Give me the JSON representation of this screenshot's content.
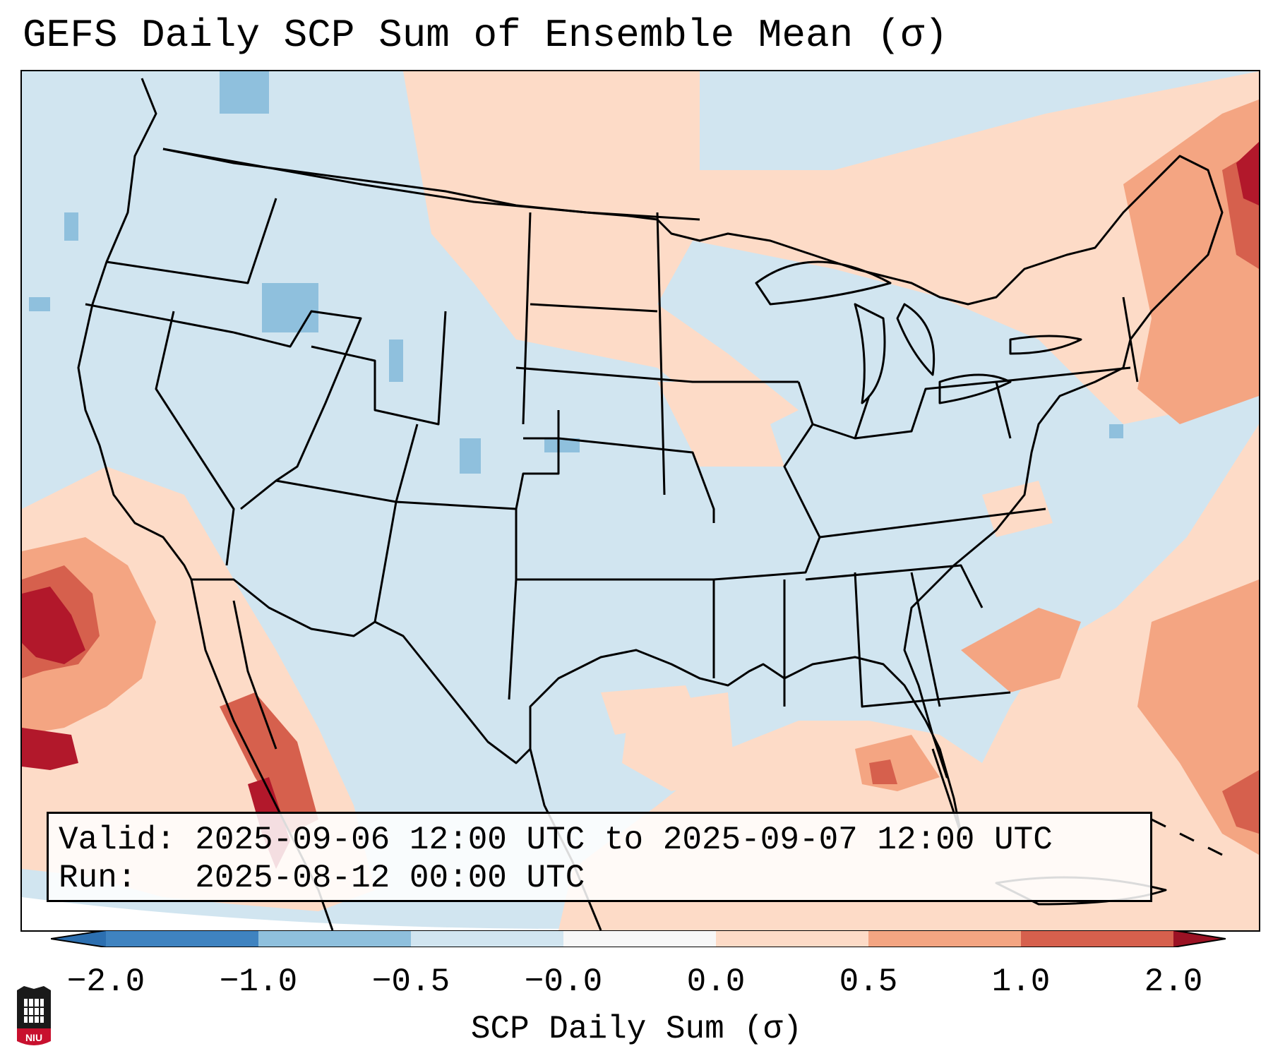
{
  "title": "GEFS Daily SCP Sum of Ensemble Mean (σ)",
  "info": {
    "valid_line": "Valid: 2025-09-06 12:00 UTC to 2025-09-07 12:00 UTC",
    "run_line": "Run:   2025-08-12 00:00 UTC"
  },
  "colorbar": {
    "label": "SCP Daily Sum (σ)",
    "ticks": [
      "−2.0",
      "−1.0",
      "−0.5",
      "−0.0",
      "0.0",
      "0.5",
      "1.0",
      "2.0"
    ],
    "colors": [
      "#3f83c0",
      "#8fc0dd",
      "#d1e5f0",
      "#f7f7f7",
      "#fddbc7",
      "#f4a582",
      "#d6604d",
      "#b2182b"
    ],
    "under_color": "#2c6fb0",
    "over_color": "#9b1224"
  },
  "map_colors": {
    "neutral_blue": "#d1e5f0",
    "light_orange": "#fddbc7",
    "orange": "#f4a582",
    "red": "#d6604d",
    "dark_red": "#b2182b",
    "blue": "#8fc0dd",
    "border": "#000000"
  },
  "logo": {
    "text": "NIU"
  }
}
